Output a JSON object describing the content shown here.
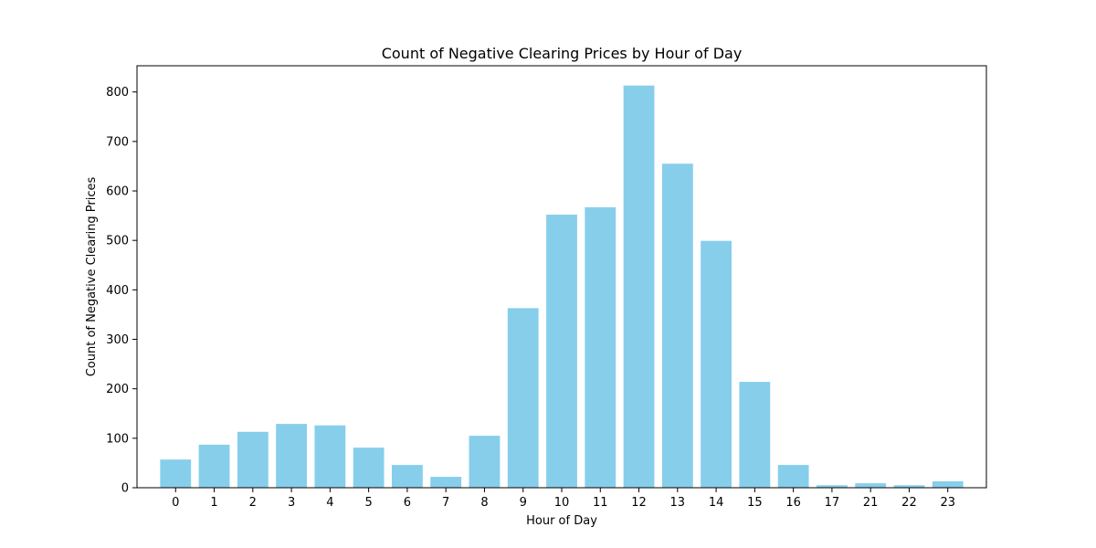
{
  "chart_data": {
    "type": "bar",
    "title": "Count of Negative Clearing Prices by Hour of Day",
    "xlabel": "Hour of Day",
    "ylabel": "Count of Negative Clearing Prices",
    "categories": [
      "0",
      "1",
      "2",
      "3",
      "4",
      "5",
      "6",
      "7",
      "8",
      "9",
      "10",
      "11",
      "12",
      "13",
      "14",
      "15",
      "16",
      "17",
      "21",
      "22",
      "23"
    ],
    "values": [
      57,
      87,
      113,
      129,
      126,
      81,
      46,
      22,
      105,
      363,
      552,
      567,
      813,
      655,
      499,
      214,
      46,
      5,
      9,
      5,
      13
    ],
    "ylim": [
      0,
      853
    ],
    "yticks": [
      0,
      100,
      200,
      300,
      400,
      500,
      600,
      700,
      800
    ],
    "bar_color": "#87CEEB",
    "grid": false,
    "legend": "none"
  }
}
